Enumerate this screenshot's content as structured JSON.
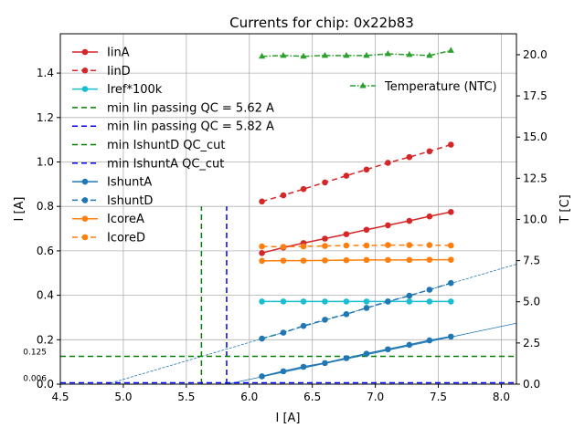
{
  "chart_data": {
    "type": "line",
    "title": "Currents for chip: 0x22b83",
    "xlabel": "I [A]",
    "ylabel": "I [A]",
    "y2label": "T [C]",
    "xlim": [
      4.5,
      8.12
    ],
    "ylim": [
      0,
      1.577
    ],
    "y2lim": [
      0,
      21.27
    ],
    "grid": true,
    "xticks": [
      "4.5",
      "5.0",
      "5.5",
      "6.0",
      "6.5",
      "7.0",
      "7.5",
      "8.0"
    ],
    "yticks": [
      "0.0",
      "0.2",
      "0.4",
      "0.6",
      "0.8",
      "1.0",
      "1.2",
      "1.4"
    ],
    "y2ticks": [
      "0.0",
      "2.5",
      "5.0",
      "7.5",
      "10.0",
      "12.5",
      "15.0",
      "17.5",
      "20.0"
    ],
    "extra_yticks": [
      "0.125",
      "0.006"
    ],
    "x": [
      6.1,
      6.27,
      6.43,
      6.6,
      6.77,
      6.93,
      7.1,
      7.27,
      7.43,
      7.6
    ],
    "series": [
      {
        "name": "IinA",
        "color": "#d62728",
        "dash": "",
        "values": [
          0.59,
          0.615,
          0.635,
          0.655,
          0.675,
          0.695,
          0.715,
          0.735,
          0.755,
          0.775
        ]
      },
      {
        "name": "IinD",
        "color": "#d62728",
        "dash": "6,4",
        "values": [
          0.822,
          0.85,
          0.878,
          0.908,
          0.938,
          0.966,
          0.996,
          1.022,
          1.048,
          1.078
        ]
      },
      {
        "name": "Iref*100k",
        "color": "#17becf",
        "dash": "",
        "values": [
          0.372,
          0.372,
          0.372,
          0.372,
          0.372,
          0.372,
          0.372,
          0.372,
          0.372,
          0.372
        ]
      },
      {
        "name": "IshuntA",
        "color": "#1f77b4",
        "dash": "",
        "values": [
          0.035,
          0.058,
          0.078,
          0.095,
          0.117,
          0.137,
          0.157,
          0.177,
          0.197,
          0.214
        ]
      },
      {
        "name": "IshuntD",
        "color": "#1f77b4",
        "dash": "6,4",
        "values": [
          0.205,
          0.232,
          0.262,
          0.29,
          0.315,
          0.343,
          0.372,
          0.398,
          0.425,
          0.455
        ]
      },
      {
        "name": "IcoreA",
        "color": "#ff7f0e",
        "dash": "",
        "values": [
          0.555,
          0.556,
          0.556,
          0.557,
          0.558,
          0.559,
          0.559,
          0.559,
          0.56,
          0.56
        ]
      },
      {
        "name": "IcoreD",
        "color": "#ff7f0e",
        "dash": "6,4",
        "values": [
          0.62,
          0.618,
          0.62,
          0.622,
          0.624,
          0.624,
          0.626,
          0.626,
          0.626,
          0.624
        ]
      }
    ],
    "temperature": {
      "name": "Temperature (NTC)",
      "color": "#2ca02c",
      "values": [
        19.9,
        19.95,
        19.9,
        19.95,
        19.95,
        19.95,
        20.05,
        20.0,
        19.95,
        20.25
      ]
    },
    "fits": [
      {
        "name": "IshuntA fit",
        "color": "#1f77b4",
        "x": [
          5.82,
          8.12
        ],
        "y": [
          0,
          0.274
        ]
      },
      {
        "name": "IshuntD fit",
        "color": "#1f77b4",
        "x": [
          4.87,
          8.12
        ],
        "y": [
          0,
          0.54
        ]
      }
    ],
    "vlines": [
      {
        "name": "min Iin passing QC = 5.62 A",
        "color": "#008000",
        "x": 5.62,
        "ymax": 0.8
      },
      {
        "name": "min Iin passing QC = 5.82 A",
        "color": "#0000ff",
        "x": 5.82,
        "ymax": 0.8
      }
    ],
    "hlines": [
      {
        "name": "min IshuntD QC_cut",
        "color": "#008000",
        "y": 0.125
      },
      {
        "name": "min IshuntA QC_cut",
        "color": "#0000ff",
        "y": 0.006
      }
    ],
    "legend": [
      "IinA",
      "IinD",
      "Iref*100k",
      "min Iin passing QC = 5.62 A",
      "min Iin passing QC = 5.82 A",
      "min IshuntD QC_cut",
      "min IshuntA QC_cut",
      "IshuntA",
      "IshuntD",
      "IcoreA",
      "IcoreD"
    ],
    "legend_placement": "upper-left",
    "legend2_placement": "upper-right"
  }
}
